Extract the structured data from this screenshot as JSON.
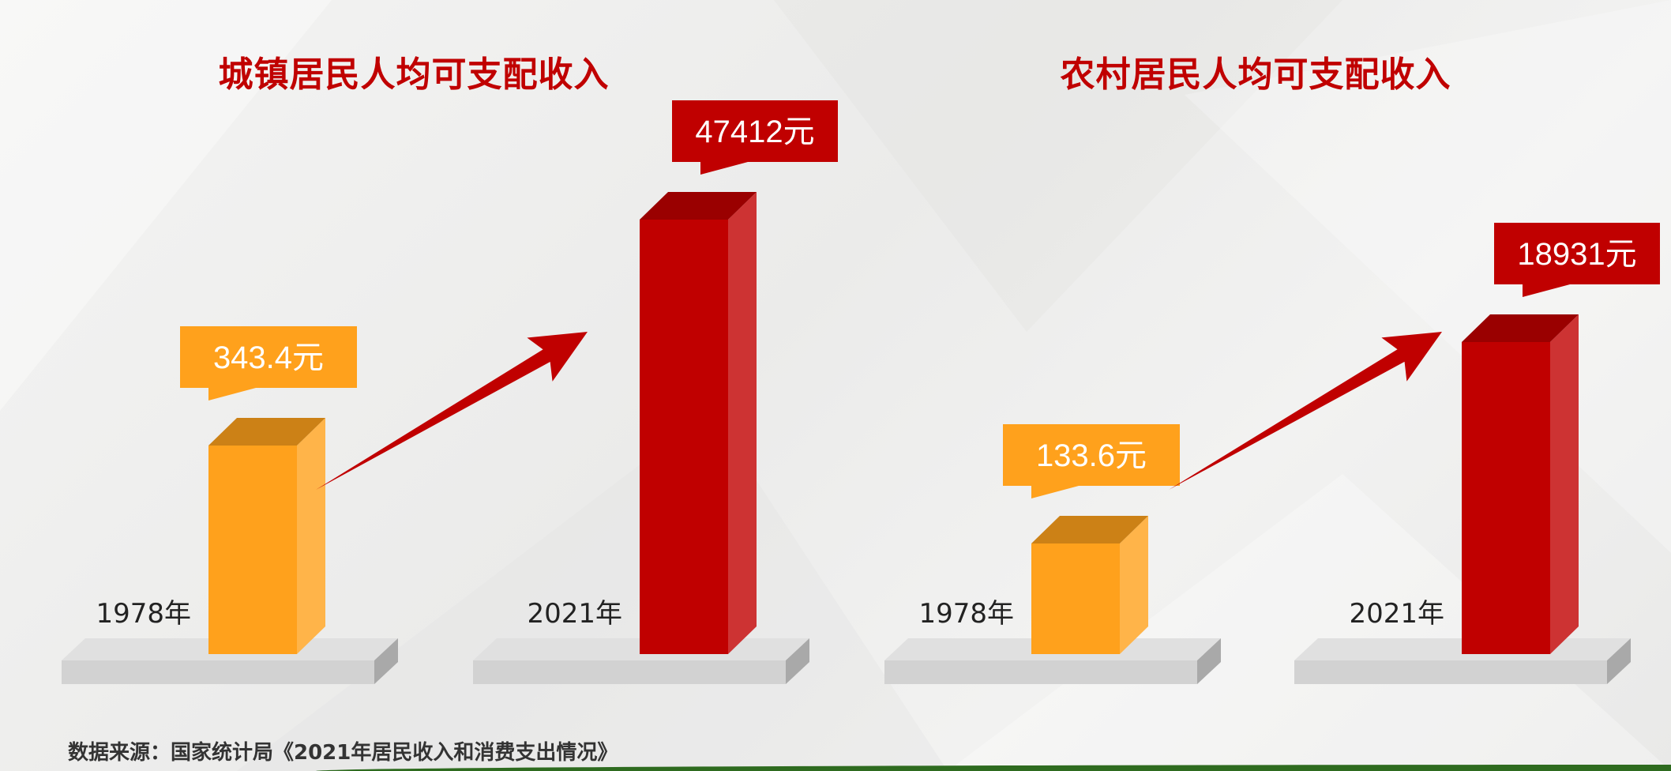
{
  "chart_data": [
    {
      "type": "bar",
      "title": "城镇居民人均可支配收入",
      "categories": [
        "1978年",
        "2021年"
      ],
      "values": [
        343.4,
        47412
      ],
      "value_labels": [
        "343.4元",
        "47412元"
      ],
      "colors": [
        "#ffa11c",
        "#c00000"
      ],
      "legend": "none",
      "grid": false
    },
    {
      "type": "bar",
      "title": "农村居民人均可支配收入",
      "categories": [
        "1978年",
        "2021年"
      ],
      "values": [
        133.6,
        18931
      ],
      "value_labels": [
        "133.6元",
        "18931元"
      ],
      "colors": [
        "#ffa11c",
        "#c00000"
      ],
      "legend": "none",
      "grid": false
    }
  ],
  "footer": {
    "source": "数据来源：国家统计局《2021年居民收入和消费支出情况》"
  }
}
